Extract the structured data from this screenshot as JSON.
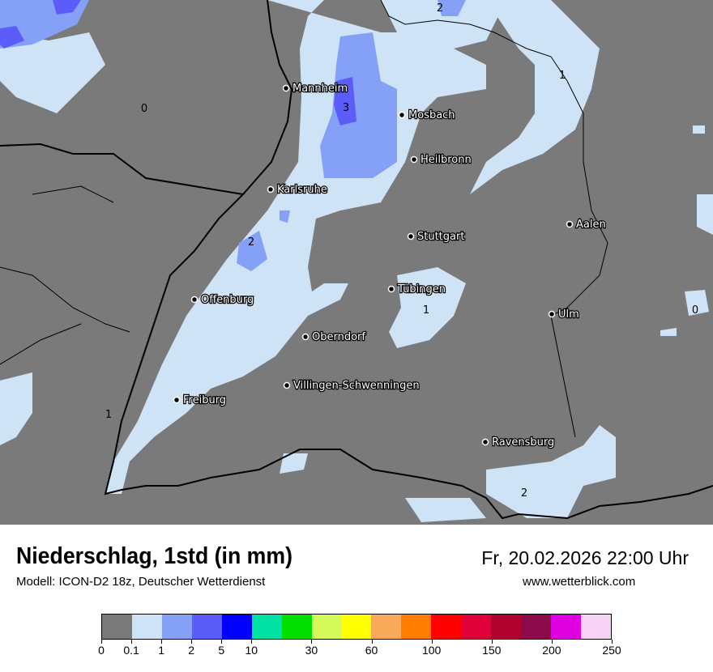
{
  "header": {
    "title": "Niederschlag, 1std (in mm)",
    "subtitle": "Modell: ICON-D2 18z, Deutscher Wetterdienst",
    "datetime": "Fr, 20.02.2026 22:00 Uhr",
    "website": "www.wetterblick.com"
  },
  "map": {
    "background_color": "#7a7a7a",
    "cities": [
      {
        "name": "Mannheim"
      },
      {
        "name": "Mosbach"
      },
      {
        "name": "Heilbronn"
      },
      {
        "name": "Karlsruhe"
      },
      {
        "name": "Aalen"
      },
      {
        "name": "Stuttgart"
      },
      {
        "name": "Tübingen"
      },
      {
        "name": "Ulm"
      },
      {
        "name": "Offenburg"
      },
      {
        "name": "Oberndorf"
      },
      {
        "name": "Villingen-Schwenningen"
      },
      {
        "name": "Freiburg"
      },
      {
        "name": "Ravensburg"
      }
    ],
    "contour_labels": [
      "2",
      "1",
      "0",
      "3",
      "2",
      "1",
      "0",
      "1",
      "2"
    ]
  },
  "legend": {
    "colors": [
      "#7a7a7a",
      "#cfe3f7",
      "#84a0f7",
      "#5c5cf9",
      "#0000fd",
      "#00e1a4",
      "#00de00",
      "#d3f95a",
      "#ffff00",
      "#f8aa5a",
      "#ff7d00",
      "#ff0000",
      "#de0039",
      "#b0002e",
      "#8b0a4a",
      "#df00df",
      "#f7d3f5"
    ],
    "ticks": [
      {
        "label": "0",
        "index": 0
      },
      {
        "label": "0.1",
        "index": 1
      },
      {
        "label": "1",
        "index": 2
      },
      {
        "label": "2",
        "index": 3
      },
      {
        "label": "5",
        "index": 4
      },
      {
        "label": "10",
        "index": 5
      },
      {
        "label": "30",
        "index": 7
      },
      {
        "label": "60",
        "index": 9
      },
      {
        "label": "100",
        "index": 11
      },
      {
        "label": "150",
        "index": 13
      },
      {
        "label": "200",
        "index": 15
      },
      {
        "label": "250",
        "index": 17
      }
    ]
  }
}
